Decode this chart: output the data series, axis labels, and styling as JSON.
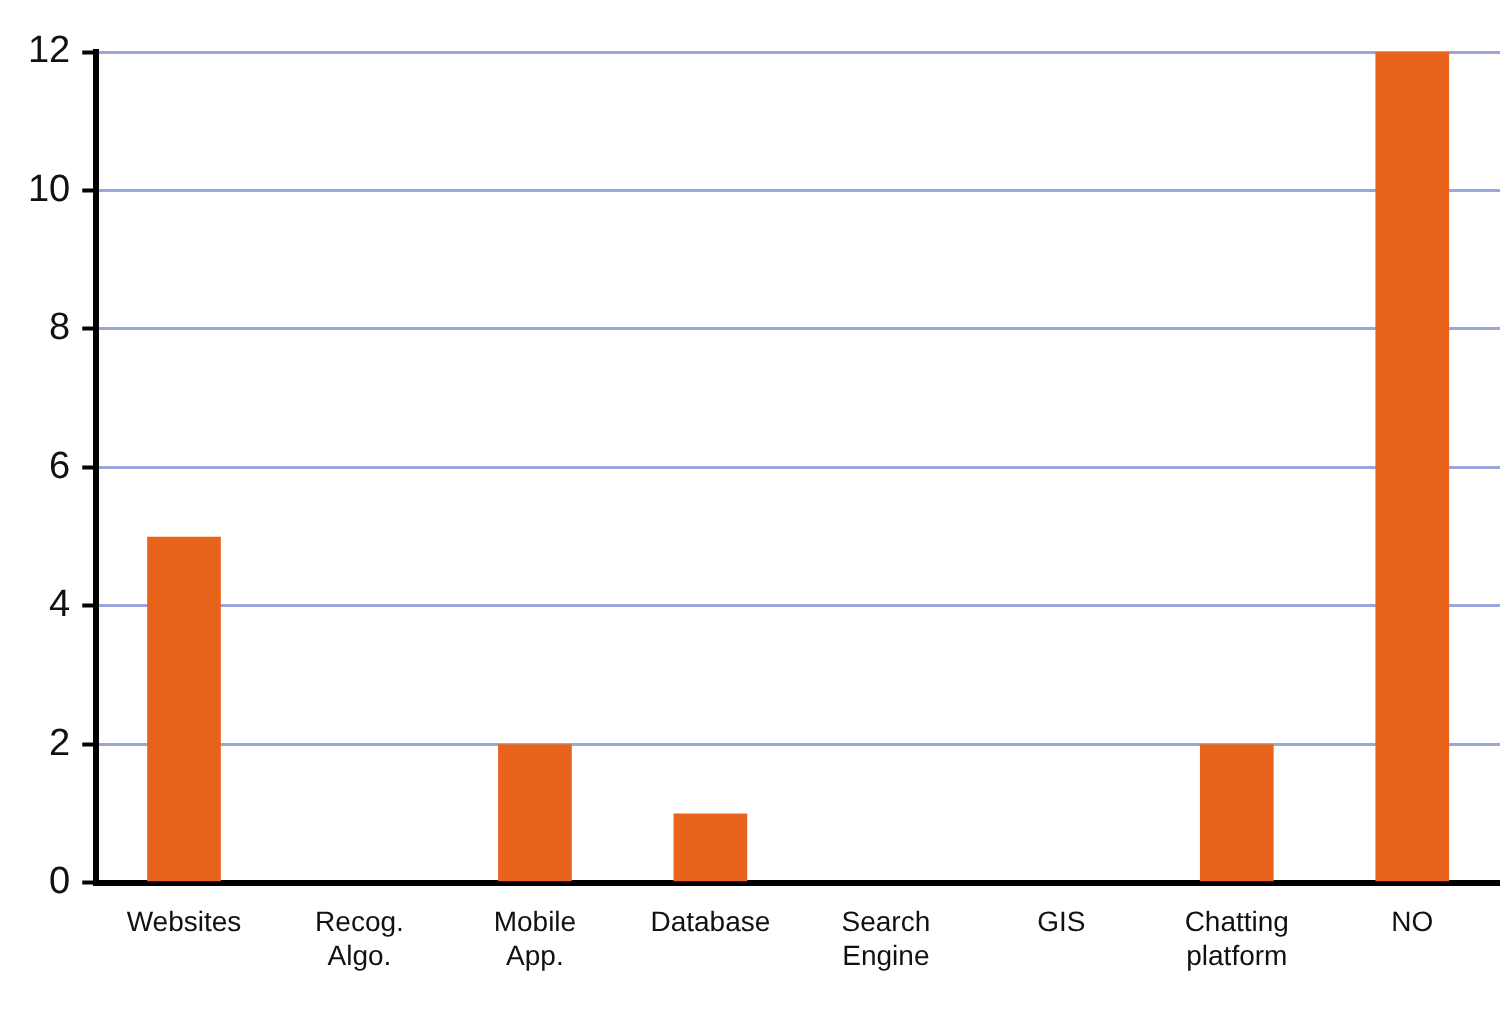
{
  "chart_data": {
    "type": "bar",
    "categories": [
      "Websites",
      "Recog. Algo.",
      "Mobile App.",
      "Database",
      "Search Engine",
      "GIS",
      "Chatting platform",
      "NO"
    ],
    "values": [
      5,
      0,
      2,
      1,
      0,
      0,
      2,
      12
    ],
    "color": "#e8641c",
    "ylim": [
      0,
      12
    ],
    "yticks": [
      0,
      2,
      4,
      6,
      8,
      10,
      12
    ],
    "grid": "y",
    "legend": false
  }
}
